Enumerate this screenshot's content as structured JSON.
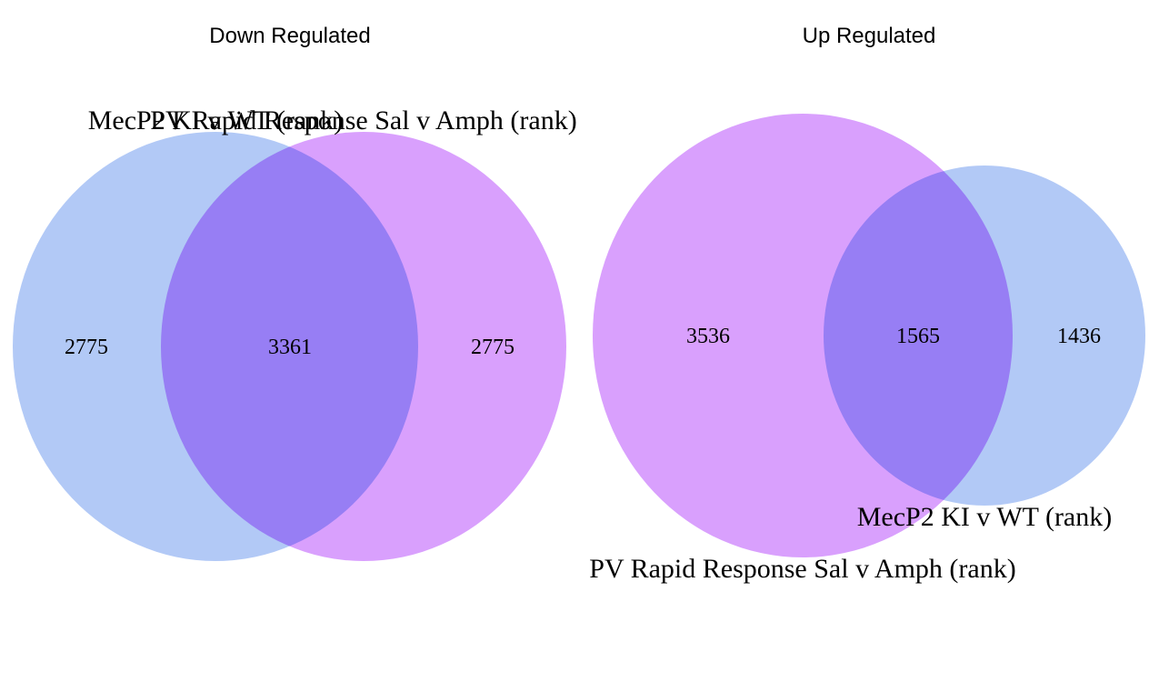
{
  "colors": {
    "blue": "#a4c0f4",
    "violet": "#d28ffd"
  },
  "venns": [
    {
      "title": "Down Regulated",
      "set_a_label": "MecP2  KI v WT (rank)",
      "set_b_label": "PV Rapid Response Sal v Amph (rank)",
      "only_a": "2775",
      "both": "3361",
      "only_b": "2775"
    },
    {
      "title": "Up Regulated",
      "set_a_label": "MecP2  KI v WT (rank)",
      "set_b_label": "PV Rapid Response Sal v Amph (rank)",
      "only_a": "1436",
      "both": "1565",
      "only_b": "3536"
    }
  ]
}
